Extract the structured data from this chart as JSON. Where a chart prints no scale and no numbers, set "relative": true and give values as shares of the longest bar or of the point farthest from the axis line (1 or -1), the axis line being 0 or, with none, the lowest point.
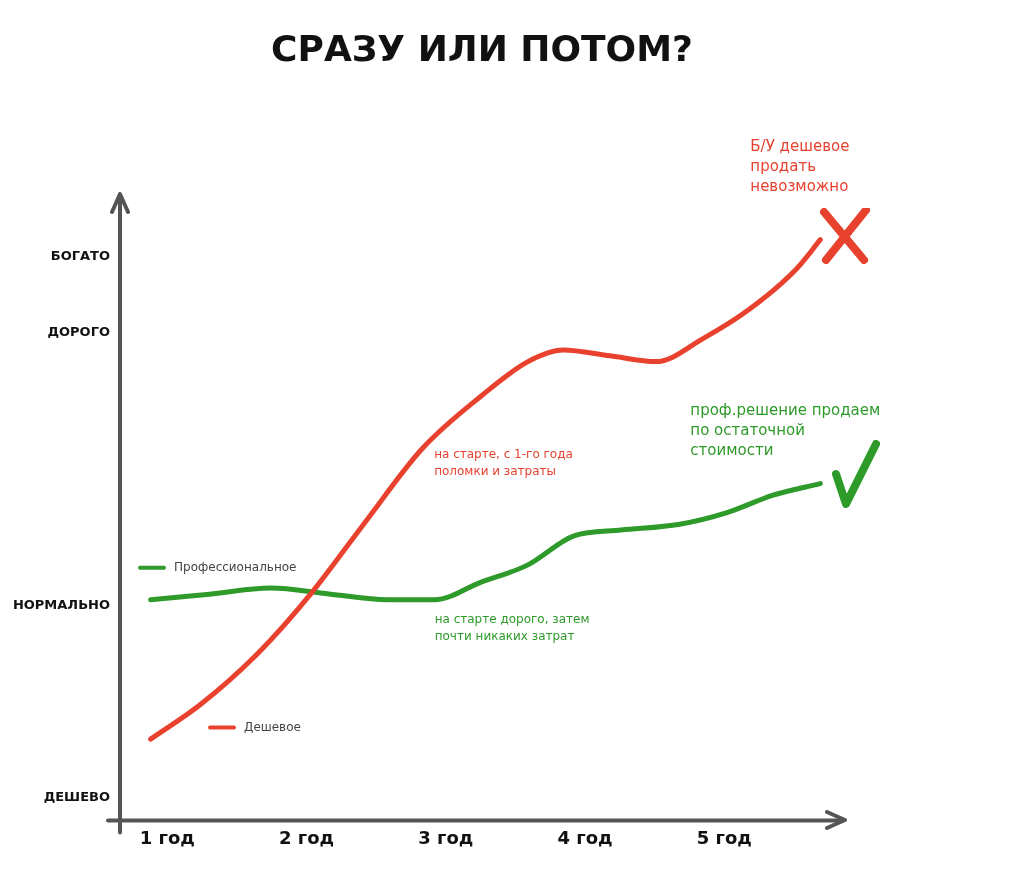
{
  "chart_data": {
    "type": "line",
    "title": "СРАЗУ ИЛИ ПОТОМ?",
    "xlim": [
      0.66,
      5.86
    ],
    "xticks": [
      {
        "value": 1,
        "label": "1 год"
      },
      {
        "value": 2,
        "label": "2 год"
      },
      {
        "value": 3,
        "label": "3 год"
      },
      {
        "value": 4,
        "label": "4 год"
      },
      {
        "value": 5,
        "label": "5 год"
      }
    ],
    "relative": true,
    "series": [
      {
        "name": "Дешевое",
        "color": "#e8422f",
        "x": [
          0.88,
          1.24,
          1.66,
          2.03,
          2.41,
          2.83,
          3.25,
          3.59,
          3.84,
          4.18,
          4.51,
          4.85,
          5.18,
          5.52,
          5.69
        ],
        "values": [
          0.14,
          0.2,
          0.29,
          0.39,
          0.51,
          0.64,
          0.73,
          0.79,
          0.81,
          0.8,
          0.79,
          0.83,
          0.88,
          0.95,
          1
        ]
      },
      {
        "name": "Профессиональное",
        "color": "#2e9a2a",
        "x": [
          0.88,
          1.32,
          1.74,
          2.16,
          2.58,
          2.92,
          3.25,
          3.59,
          3.92,
          4.26,
          4.68,
          5.02,
          5.35,
          5.69
        ],
        "values": [
          0.38,
          0.39,
          0.4,
          0.39,
          0.38,
          0.38,
          0.41,
          0.44,
          0.49,
          0.5,
          0.51,
          0.53,
          0.56,
          0.58
        ]
      }
    ],
    "annotations": [
      "на старте, с 1-го года поломки и затраты",
      "на старте дорого, затем почти никаких затрат",
      "Б/У дешевое продать невозможно",
      "проф.решение продаем по остаточной стоимости",
      "БОГАТО",
      "ДОРОГО",
      "НОРМАЛЬНО",
      "ДЕШЕВО"
    ],
    "legend": "left",
    "grid": false,
    "marker": "none",
    "line_style": "solid"
  }
}
